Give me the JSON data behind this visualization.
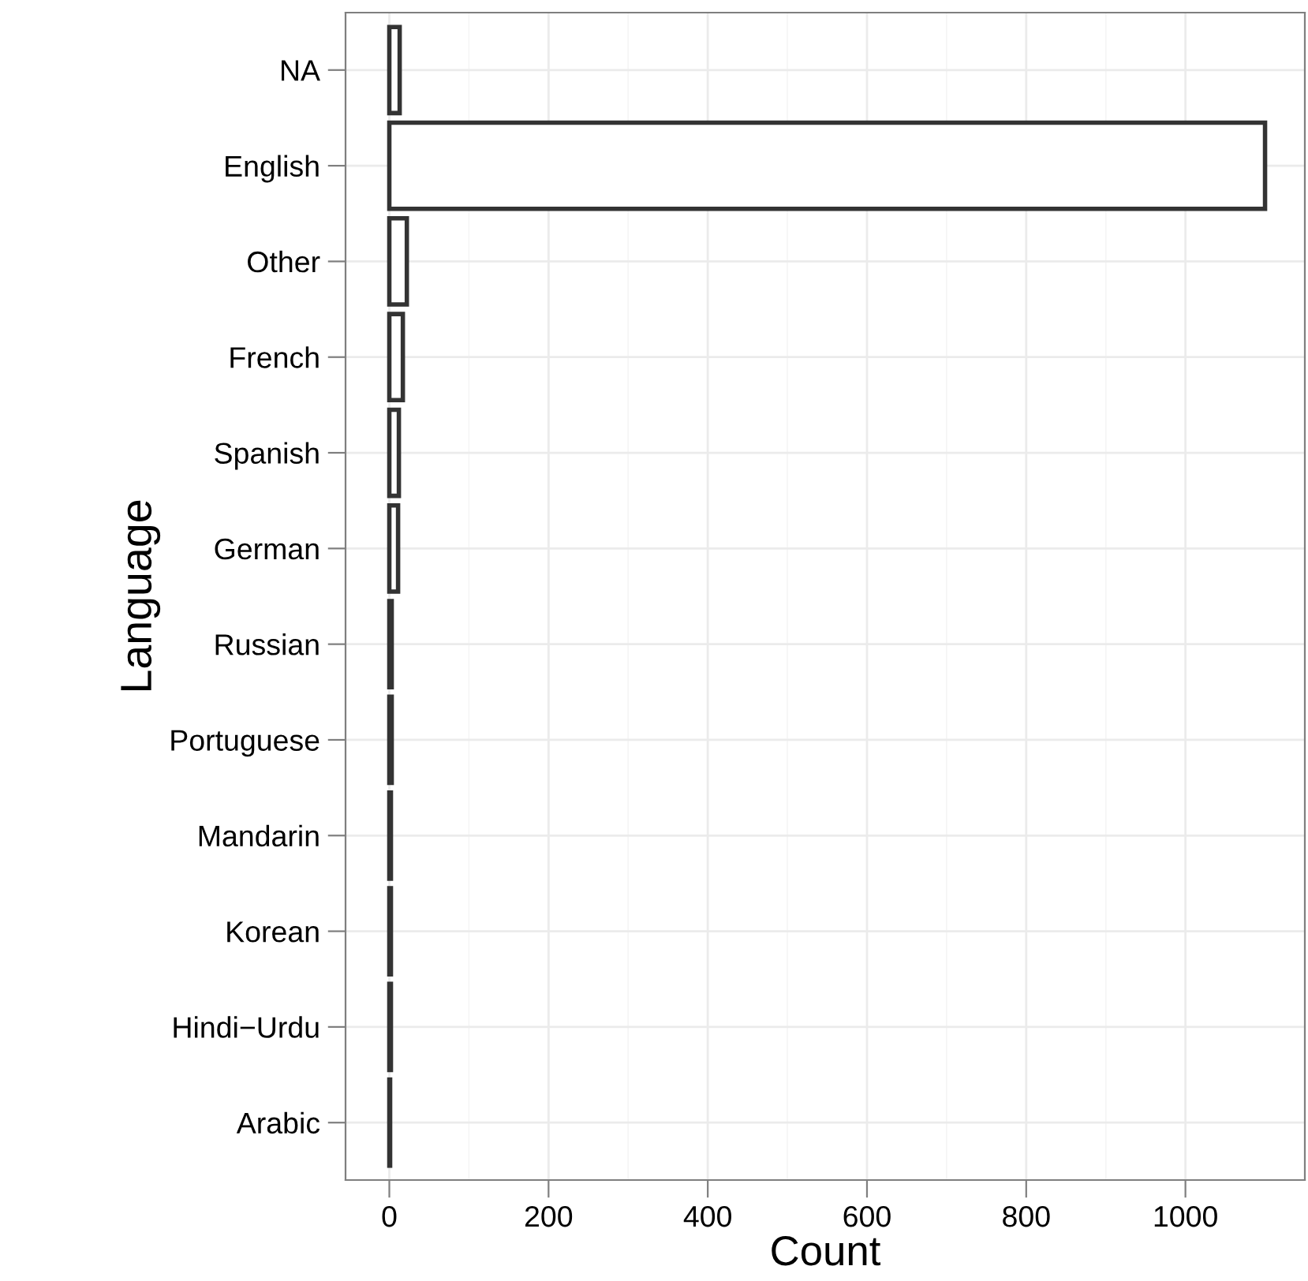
{
  "chart_data": {
    "type": "bar",
    "orientation": "horizontal",
    "xlabel": "Count",
    "ylabel": "Language",
    "categories": [
      "NA",
      "English",
      "Other",
      "French",
      "Spanish",
      "German",
      "Russian",
      "Portuguese",
      "Mandarin",
      "Korean",
      "Hindi−Urdu",
      "Arabic"
    ],
    "values": [
      13,
      1100,
      22,
      17,
      12,
      11,
      3,
      3,
      2,
      2,
      2,
      1
    ],
    "color": "#ffffff",
    "xlim": [
      -55,
      1150
    ],
    "xticks": [
      0,
      200,
      400,
      600,
      800,
      1000
    ],
    "grid": true
  }
}
